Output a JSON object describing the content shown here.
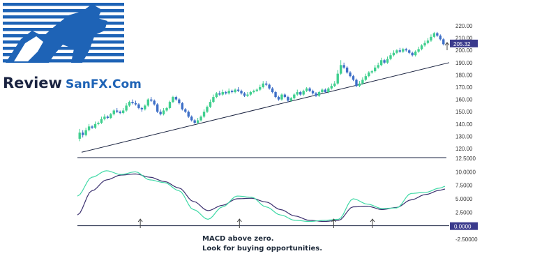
{
  "logo": {
    "word_primary": "Review",
    "word_secondary": "SanFX.Com",
    "color_primary": "#1a2340",
    "color_brand": "#1e63b6"
  },
  "colors": {
    "bull": "#3fcf8e",
    "bear": "#3e6fc7",
    "macd_line": "#3fd9a6",
    "signal_line": "#3a2f6e",
    "axis_line": "#1a2340",
    "tag_bg": "#3a3a8c",
    "arrow": "#444444"
  },
  "annotation": {
    "line1": "MACD above zero.",
    "line2": "Look for buying opportunities."
  },
  "chart_data": [
    {
      "type": "candlestick",
      "title": "",
      "xlabel": "",
      "ylabel": "",
      "ylim": [
        115,
        222
      ],
      "y_ticks": [
        "220.00",
        "210.00",
        "200.00",
        "190.00",
        "180.00",
        "170.00",
        "160.00",
        "150.00",
        "140.00",
        "130.00",
        "120.00"
      ],
      "y_tick_values": [
        220,
        210,
        200,
        190,
        180,
        170,
        160,
        150,
        140,
        130,
        120
      ],
      "price_tag": {
        "label": "205.32",
        "value": 205.32
      },
      "trendline": {
        "start": [
          0,
          117
        ],
        "end": [
          152,
          190
        ]
      },
      "candles": [
        [
          128,
          133,
          126,
          136
        ],
        [
          133,
          131,
          129,
          135
        ],
        [
          131,
          135,
          130,
          137
        ],
        [
          135,
          138,
          134,
          140
        ],
        [
          138,
          137,
          136,
          139
        ],
        [
          137,
          140,
          136,
          142
        ],
        [
          140,
          141,
          139,
          142
        ],
        [
          141,
          144,
          140,
          146
        ],
        [
          144,
          146,
          143,
          148
        ],
        [
          146,
          145,
          144,
          147
        ],
        [
          145,
          148,
          144,
          149
        ],
        [
          148,
          151,
          147,
          152
        ],
        [
          151,
          150,
          149,
          153
        ],
        [
          150,
          149,
          148,
          151
        ],
        [
          149,
          151,
          148,
          153
        ],
        [
          151,
          155,
          150,
          157
        ],
        [
          155,
          158,
          154,
          159
        ],
        [
          158,
          157,
          156,
          160
        ],
        [
          157,
          156,
          155,
          159
        ],
        [
          156,
          153,
          152,
          157
        ],
        [
          153,
          152,
          150,
          154
        ],
        [
          152,
          155,
          151,
          156
        ],
        [
          155,
          160,
          154,
          161
        ],
        [
          160,
          159,
          158,
          162
        ],
        [
          159,
          156,
          155,
          160
        ],
        [
          156,
          150,
          149,
          157
        ],
        [
          150,
          148,
          147,
          152
        ],
        [
          148,
          151,
          147,
          153
        ],
        [
          151,
          153,
          150,
          154
        ],
        [
          153,
          158,
          152,
          159
        ],
        [
          158,
          162,
          157,
          163
        ],
        [
          162,
          160,
          159,
          163
        ],
        [
          160,
          157,
          156,
          161
        ],
        [
          157,
          152,
          151,
          158
        ],
        [
          152,
          150,
          149,
          153
        ],
        [
          150,
          146,
          145,
          151
        ],
        [
          146,
          143,
          142,
          147
        ],
        [
          143,
          141,
          140,
          144
        ],
        [
          141,
          143,
          140,
          145
        ],
        [
          143,
          146,
          142,
          147
        ],
        [
          146,
          150,
          145,
          152
        ],
        [
          150,
          154,
          149,
          155
        ],
        [
          154,
          158,
          153,
          160
        ],
        [
          158,
          162,
          157,
          164
        ],
        [
          162,
          165,
          161,
          166
        ],
        [
          165,
          164,
          163,
          167
        ],
        [
          164,
          166,
          163,
          168
        ],
        [
          166,
          165,
          164,
          167
        ],
        [
          165,
          167,
          164,
          169
        ],
        [
          167,
          166,
          165,
          168
        ],
        [
          166,
          168,
          165,
          169
        ],
        [
          168,
          167,
          166,
          170
        ],
        [
          167,
          165,
          164,
          168
        ],
        [
          165,
          163,
          162,
          166
        ],
        [
          163,
          164,
          162,
          166
        ],
        [
          164,
          166,
          163,
          167
        ],
        [
          166,
          167,
          165,
          168
        ],
        [
          167,
          168,
          166,
          169
        ],
        [
          168,
          170,
          167,
          172
        ],
        [
          170,
          173,
          169,
          175
        ],
        [
          173,
          172,
          171,
          175
        ],
        [
          172,
          169,
          168,
          173
        ],
        [
          169,
          166,
          165,
          170
        ],
        [
          166,
          162,
          161,
          167
        ],
        [
          162,
          160,
          159,
          163
        ],
        [
          160,
          164,
          159,
          165
        ],
        [
          164,
          162,
          161,
          165
        ],
        [
          162,
          159,
          158,
          163
        ],
        [
          159,
          161,
          158,
          162
        ],
        [
          161,
          164,
          160,
          165
        ],
        [
          164,
          166,
          163,
          168
        ],
        [
          166,
          164,
          163,
          167
        ],
        [
          164,
          167,
          163,
          168
        ],
        [
          167,
          169,
          166,
          170
        ],
        [
          169,
          167,
          166,
          170
        ],
        [
          167,
          165,
          164,
          168
        ],
        [
          165,
          163,
          162,
          166
        ],
        [
          163,
          166,
          162,
          167
        ],
        [
          166,
          168,
          165,
          169
        ],
        [
          168,
          166,
          165,
          169
        ],
        [
          166,
          169,
          165,
          170
        ],
        [
          169,
          171,
          168,
          173
        ],
        [
          171,
          173,
          170,
          175
        ],
        [
          173,
          181,
          172,
          184
        ],
        [
          181,
          188,
          180,
          192
        ],
        [
          188,
          186,
          185,
          190
        ],
        [
          186,
          182,
          181,
          187
        ],
        [
          182,
          179,
          178,
          183
        ],
        [
          179,
          176,
          175,
          180
        ],
        [
          176,
          171,
          170,
          177
        ],
        [
          171,
          173,
          170,
          175
        ],
        [
          173,
          176,
          172,
          178
        ],
        [
          176,
          179,
          175,
          181
        ],
        [
          179,
          182,
          178,
          183
        ],
        [
          182,
          183,
          181,
          184
        ],
        [
          183,
          186,
          182,
          188
        ],
        [
          186,
          188,
          185,
          190
        ],
        [
          188,
          192,
          187,
          194
        ],
        [
          192,
          190,
          189,
          193
        ],
        [
          190,
          193,
          189,
          195
        ],
        [
          193,
          196,
          192,
          198
        ],
        [
          196,
          198,
          195,
          200
        ],
        [
          198,
          200,
          197,
          201
        ],
        [
          200,
          199,
          198,
          202
        ],
        [
          199,
          201,
          198,
          202
        ],
        [
          201,
          200,
          199,
          202
        ],
        [
          200,
          198,
          197,
          201
        ],
        [
          198,
          196,
          195,
          199
        ],
        [
          196,
          199,
          195,
          200
        ],
        [
          199,
          201,
          198,
          203
        ],
        [
          201,
          204,
          200,
          205
        ],
        [
          204,
          206,
          203,
          208
        ],
        [
          206,
          208,
          205,
          210
        ],
        [
          208,
          211,
          207,
          213
        ],
        [
          211,
          214,
          210,
          215
        ],
        [
          214,
          212,
          211,
          215
        ],
        [
          212,
          209,
          208,
          213
        ],
        [
          209,
          205,
          204,
          210
        ]
      ]
    },
    {
      "type": "line",
      "title": "",
      "xlabel": "",
      "ylabel": "",
      "ylim": [
        -3.5,
        12.5
      ],
      "y_ticks": [
        "12.5000",
        "10.0000",
        "7.5000",
        "5.0000",
        "2.5000",
        "0.0000",
        "-2.50000"
      ],
      "y_tick_values": [
        12.5,
        10,
        7.5,
        5,
        2.5,
        0,
        -2.5
      ],
      "zero_tag": {
        "label": "0.0000",
        "value": 0
      },
      "x": [
        0,
        6,
        12,
        18,
        24,
        30,
        36,
        42,
        48,
        54,
        60,
        66,
        72,
        78,
        84,
        90,
        96,
        102,
        108,
        114,
        120,
        126,
        132,
        138,
        144,
        150,
        152
      ],
      "series": [
        {
          "values": [
            5.5,
            9.0,
            10.2,
            9.5,
            10.0,
            8.5,
            8.0,
            6.5,
            3.0,
            1.2,
            3.5,
            5.5,
            5.3,
            3.5,
            2.0,
            1.0,
            0.8,
            1.0,
            1.2,
            5.0,
            4.0,
            3.2,
            3.3,
            6.0,
            6.2,
            7.0,
            7.3
          ]
        },
        {
          "values": [
            2.0,
            6.5,
            8.5,
            9.4,
            9.6,
            9.0,
            8.2,
            7.0,
            4.5,
            2.8,
            3.8,
            5.0,
            5.1,
            4.4,
            3.0,
            1.8,
            1.0,
            0.8,
            1.0,
            3.5,
            3.6,
            3.0,
            3.4,
            4.8,
            5.8,
            6.6,
            6.8
          ]
        }
      ],
      "annotations": {
        "arrows_at_x": [
          26,
          67,
          106,
          122
        ]
      }
    }
  ]
}
